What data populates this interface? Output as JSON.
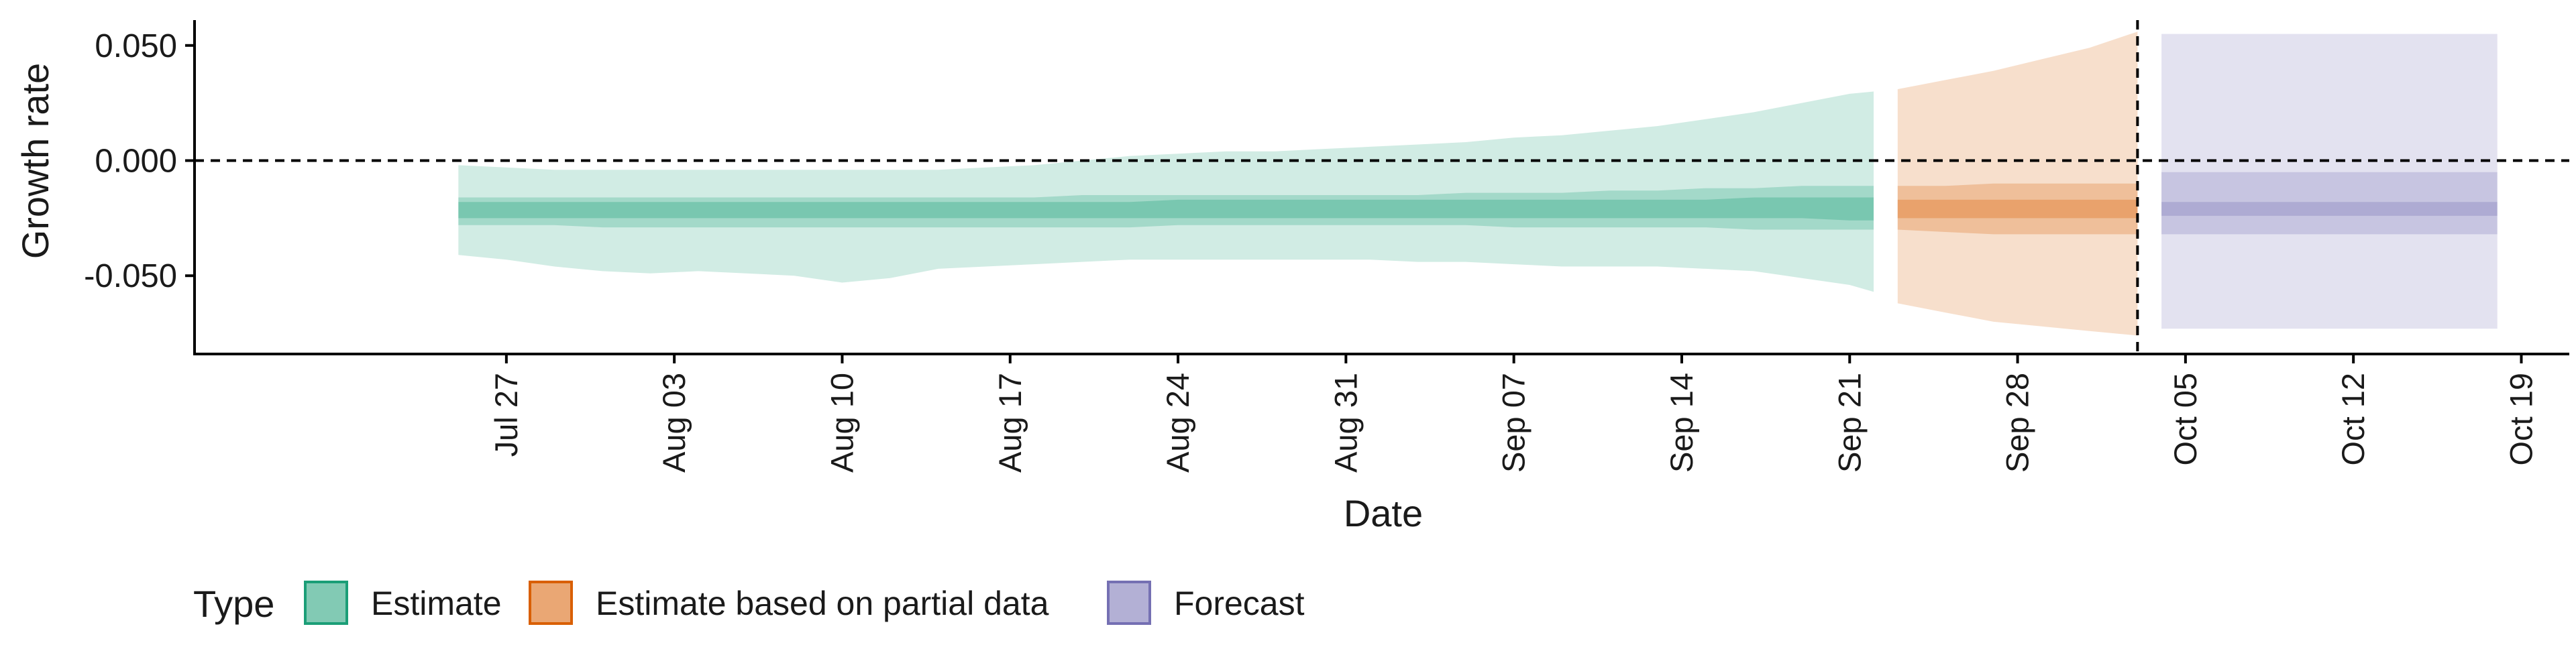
{
  "chart_data": {
    "type": "area",
    "ylabel": "Growth rate",
    "xlabel": "Date",
    "y_ticks": [
      {
        "value": 0.05,
        "label": "0.050"
      },
      {
        "value": 0.0,
        "label": "0.000"
      },
      {
        "value": -0.05,
        "label": "-0.050"
      }
    ],
    "ylim": [
      -0.084,
      0.061
    ],
    "x_ticks": [
      {
        "date": "2020-07-27",
        "label": "Jul 27"
      },
      {
        "date": "2020-08-03",
        "label": "Aug 03"
      },
      {
        "date": "2020-08-10",
        "label": "Aug 10"
      },
      {
        "date": "2020-08-17",
        "label": "Aug 17"
      },
      {
        "date": "2020-08-24",
        "label": "Aug 24"
      },
      {
        "date": "2020-08-31",
        "label": "Aug 31"
      },
      {
        "date": "2020-09-07",
        "label": "Sep 07"
      },
      {
        "date": "2020-09-14",
        "label": "Sep 14"
      },
      {
        "date": "2020-09-21",
        "label": "Sep 21"
      },
      {
        "date": "2020-09-28",
        "label": "Sep 28"
      },
      {
        "date": "2020-10-05",
        "label": "Oct 05"
      },
      {
        "date": "2020-10-12",
        "label": "Oct 12"
      },
      {
        "date": "2020-10-19",
        "label": "Oct 19"
      }
    ],
    "xlim": [
      "2020-07-14",
      "2020-10-21"
    ],
    "hline": {
      "y": 0.0,
      "style": "dashed"
    },
    "vline": {
      "date": "2020-10-03",
      "style": "dashed"
    },
    "legend": {
      "title": "Type",
      "position": "bottom-left",
      "entries": [
        {
          "label": "Estimate",
          "color": "#1b9e77"
        },
        {
          "label": "Estimate based on partial data",
          "color": "#d95f02"
        },
        {
          "label": "Forecast",
          "color": "#7570b3"
        }
      ]
    },
    "series": [
      {
        "name": "Estimate",
        "color": "#1b9e77",
        "dates": [
          "2020-07-25",
          "2020-07-27",
          "2020-07-29",
          "2020-07-31",
          "2020-08-02",
          "2020-08-04",
          "2020-08-06",
          "2020-08-08",
          "2020-08-10",
          "2020-08-12",
          "2020-08-14",
          "2020-08-16",
          "2020-08-18",
          "2020-08-20",
          "2020-08-22",
          "2020-08-24",
          "2020-08-26",
          "2020-08-28",
          "2020-08-30",
          "2020-09-01",
          "2020-09-03",
          "2020-09-05",
          "2020-09-07",
          "2020-09-09",
          "2020-09-11",
          "2020-09-13",
          "2020-09-15",
          "2020-09-17",
          "2020-09-19",
          "2020-09-21",
          "2020-09-22"
        ],
        "median": [
          -0.021,
          -0.022,
          -0.022,
          -0.022,
          -0.022,
          -0.022,
          -0.022,
          -0.022,
          -0.022,
          -0.021,
          -0.022,
          -0.022,
          -0.021,
          -0.021,
          -0.021,
          -0.021,
          -0.021,
          -0.021,
          -0.021,
          -0.021,
          -0.021,
          -0.021,
          -0.021,
          -0.021,
          -0.021,
          -0.021,
          -0.021,
          -0.021,
          -0.021,
          -0.021,
          -0.021
        ],
        "lower_20": [
          -0.025,
          -0.025,
          -0.025,
          -0.025,
          -0.025,
          -0.025,
          -0.025,
          -0.025,
          -0.025,
          -0.025,
          -0.025,
          -0.025,
          -0.025,
          -0.025,
          -0.025,
          -0.025,
          -0.025,
          -0.025,
          -0.025,
          -0.025,
          -0.025,
          -0.025,
          -0.025,
          -0.025,
          -0.025,
          -0.025,
          -0.025,
          -0.025,
          -0.025,
          -0.026,
          -0.026
        ],
        "upper_20": [
          -0.018,
          -0.018,
          -0.018,
          -0.018,
          -0.018,
          -0.018,
          -0.018,
          -0.018,
          -0.018,
          -0.018,
          -0.018,
          -0.018,
          -0.018,
          -0.018,
          -0.018,
          -0.017,
          -0.017,
          -0.017,
          -0.017,
          -0.017,
          -0.017,
          -0.017,
          -0.017,
          -0.017,
          -0.017,
          -0.017,
          -0.017,
          -0.016,
          -0.016,
          -0.016,
          -0.016
        ],
        "lower_50": [
          -0.028,
          -0.028,
          -0.028,
          -0.029,
          -0.029,
          -0.029,
          -0.029,
          -0.029,
          -0.029,
          -0.029,
          -0.029,
          -0.029,
          -0.029,
          -0.029,
          -0.029,
          -0.028,
          -0.028,
          -0.028,
          -0.028,
          -0.028,
          -0.028,
          -0.028,
          -0.029,
          -0.029,
          -0.029,
          -0.029,
          -0.029,
          -0.03,
          -0.03,
          -0.03,
          -0.03
        ],
        "upper_50": [
          -0.016,
          -0.016,
          -0.016,
          -0.016,
          -0.016,
          -0.016,
          -0.016,
          -0.016,
          -0.016,
          -0.016,
          -0.016,
          -0.016,
          -0.016,
          -0.015,
          -0.015,
          -0.015,
          -0.015,
          -0.015,
          -0.015,
          -0.015,
          -0.015,
          -0.014,
          -0.014,
          -0.014,
          -0.013,
          -0.013,
          -0.012,
          -0.012,
          -0.011,
          -0.011,
          -0.011
        ],
        "lower_90": [
          -0.041,
          -0.043,
          -0.046,
          -0.048,
          -0.049,
          -0.048,
          -0.049,
          -0.05,
          -0.053,
          -0.051,
          -0.047,
          -0.046,
          -0.045,
          -0.044,
          -0.043,
          -0.043,
          -0.043,
          -0.043,
          -0.043,
          -0.043,
          -0.044,
          -0.044,
          -0.045,
          -0.046,
          -0.046,
          -0.046,
          -0.047,
          -0.048,
          -0.051,
          -0.054,
          -0.057
        ],
        "upper_90": [
          -0.002,
          -0.003,
          -0.004,
          -0.004,
          -0.004,
          -0.004,
          -0.004,
          -0.004,
          -0.004,
          -0.004,
          -0.004,
          -0.003,
          -0.002,
          0.0,
          0.002,
          0.003,
          0.004,
          0.004,
          0.005,
          0.006,
          0.007,
          0.008,
          0.01,
          0.011,
          0.013,
          0.015,
          0.018,
          0.021,
          0.025,
          0.029,
          0.03
        ]
      },
      {
        "name": "Estimate based on partial data",
        "color": "#d95f02",
        "dates": [
          "2020-09-23",
          "2020-09-25",
          "2020-09-27",
          "2020-09-29",
          "2020-10-01",
          "2020-10-03"
        ],
        "median": [
          -0.021,
          -0.021,
          -0.021,
          -0.021,
          -0.021,
          -0.021
        ],
        "lower_20": [
          -0.025,
          -0.025,
          -0.025,
          -0.025,
          -0.025,
          -0.025
        ],
        "upper_20": [
          -0.017,
          -0.017,
          -0.017,
          -0.017,
          -0.017,
          -0.017
        ],
        "lower_50": [
          -0.03,
          -0.031,
          -0.032,
          -0.032,
          -0.032,
          -0.032
        ],
        "upper_50": [
          -0.011,
          -0.011,
          -0.01,
          -0.01,
          -0.01,
          -0.01
        ],
        "lower_90": [
          -0.062,
          -0.066,
          -0.07,
          -0.072,
          -0.074,
          -0.076
        ],
        "upper_90": [
          0.031,
          0.035,
          0.039,
          0.044,
          0.049,
          0.056
        ]
      },
      {
        "name": "Forecast",
        "color": "#7570b3",
        "dates": [
          "2020-10-04",
          "2020-10-18"
        ],
        "median": [
          -0.021,
          -0.021
        ],
        "lower_20": [
          -0.024,
          -0.024
        ],
        "upper_20": [
          -0.018,
          -0.018
        ],
        "lower_50": [
          -0.032,
          -0.032
        ],
        "upper_50": [
          -0.005,
          -0.005
        ],
        "lower_90": [
          -0.073,
          -0.073
        ],
        "upper_90": [
          0.055,
          0.055
        ]
      }
    ]
  }
}
